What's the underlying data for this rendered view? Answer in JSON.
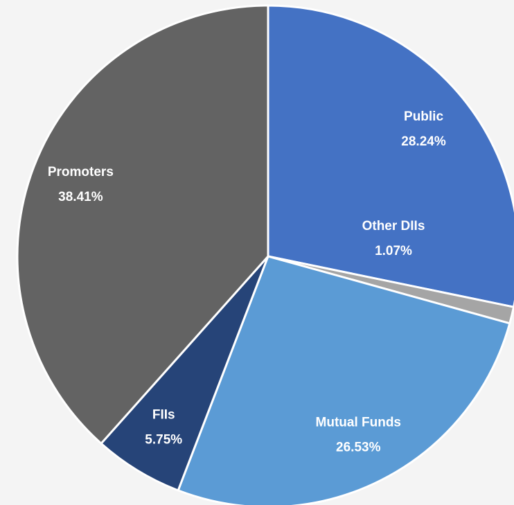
{
  "chart_data": {
    "type": "pie",
    "categories": [
      "Public",
      "Other DIIs",
      "Mutual Funds",
      "FIIs",
      "Promoters"
    ],
    "values": [
      28.24,
      1.07,
      26.53,
      5.75,
      38.41
    ],
    "value_labels": [
      "28.24%",
      "1.07%",
      "26.53%",
      "5.75%",
      "38.41%"
    ],
    "colors": [
      "#4472c4",
      "#a5a5a5",
      "#5b9bd5",
      "#264478",
      "#636363"
    ]
  }
}
